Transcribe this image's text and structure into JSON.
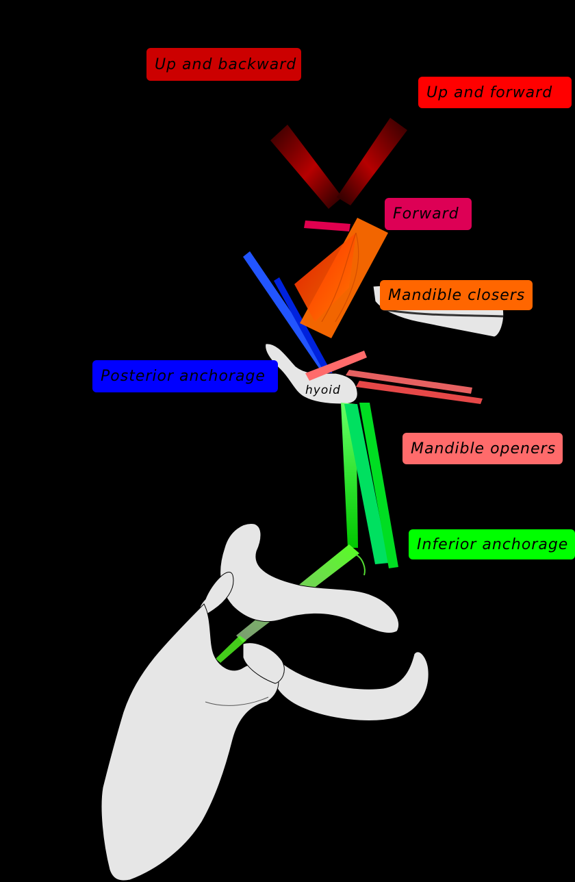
{
  "labels": {
    "up_backward": "Up and backward",
    "up_forward": "Up and forward",
    "forward": "Forward",
    "mandible_closers": "Mandible closers",
    "posterior_anchorage": "Posterior anchorage",
    "mandible_openers": "Mandible openers",
    "inferior_anchorage": "Inferior anchorage",
    "hyoid": "hyoid"
  },
  "colors": {
    "background": "#000000",
    "up_backward": "#cc0000",
    "up_forward": "#ff0000",
    "forward": "#dd0055",
    "mandible_closers": "#ff6600",
    "posterior_anchorage": "#0000ff",
    "mandible_openers": "#ff6b6b",
    "inferior_anchorage": "#00ff00",
    "bone": "#e6e6e6"
  }
}
